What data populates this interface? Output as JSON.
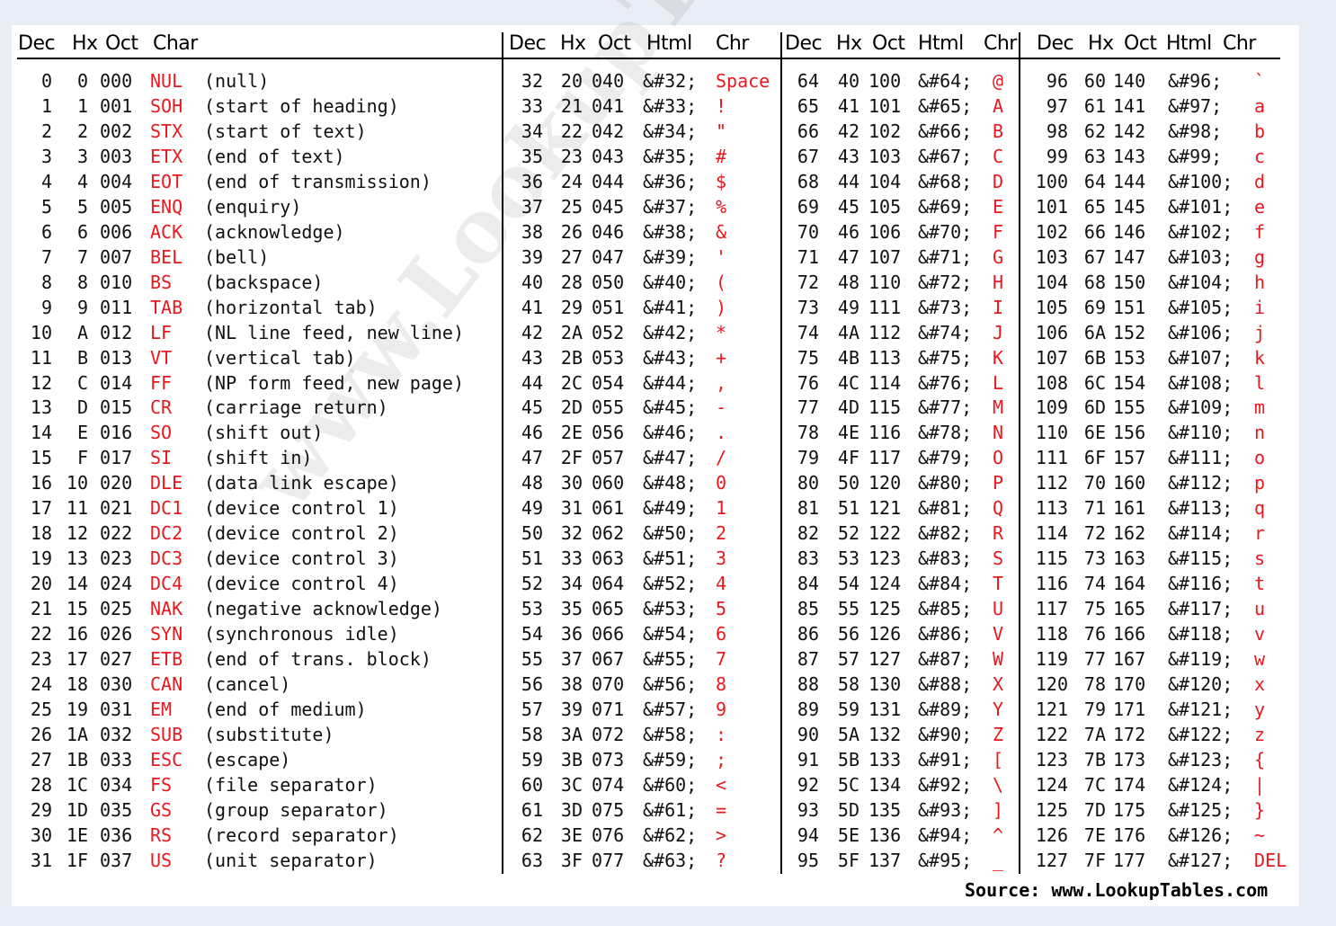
{
  "headers": [
    [
      "Dec",
      "Hx",
      "Oct",
      "Char"
    ],
    [
      "Dec",
      "Hx",
      "Oct",
      "Html",
      "Chr"
    ],
    [
      "Dec",
      "Hx",
      "Oct",
      "Html",
      "Chr"
    ],
    [
      "Dec",
      "Hx",
      "Oct",
      "Html",
      "Chr"
    ]
  ],
  "control_rows": [
    [
      "0",
      "0",
      "000",
      "NUL",
      "(null)"
    ],
    [
      "1",
      "1",
      "001",
      "SOH",
      "(start of heading)"
    ],
    [
      "2",
      "2",
      "002",
      "STX",
      "(start of text)"
    ],
    [
      "3",
      "3",
      "003",
      "ETX",
      "(end of text)"
    ],
    [
      "4",
      "4",
      "004",
      "EOT",
      "(end of transmission)"
    ],
    [
      "5",
      "5",
      "005",
      "ENQ",
      "(enquiry)"
    ],
    [
      "6",
      "6",
      "006",
      "ACK",
      "(acknowledge)"
    ],
    [
      "7",
      "7",
      "007",
      "BEL",
      "(bell)"
    ],
    [
      "8",
      "8",
      "010",
      "BS",
      "(backspace)"
    ],
    [
      "9",
      "9",
      "011",
      "TAB",
      "(horizontal tab)"
    ],
    [
      "10",
      "A",
      "012",
      "LF",
      "(NL line feed, new line)"
    ],
    [
      "11",
      "B",
      "013",
      "VT",
      "(vertical tab)"
    ],
    [
      "12",
      "C",
      "014",
      "FF",
      "(NP form feed, new page)"
    ],
    [
      "13",
      "D",
      "015",
      "CR",
      "(carriage return)"
    ],
    [
      "14",
      "E",
      "016",
      "SO",
      "(shift out)"
    ],
    [
      "15",
      "F",
      "017",
      "SI",
      "(shift in)"
    ],
    [
      "16",
      "10",
      "020",
      "DLE",
      "(data link escape)"
    ],
    [
      "17",
      "11",
      "021",
      "DC1",
      "(device control 1)"
    ],
    [
      "18",
      "12",
      "022",
      "DC2",
      "(device control 2)"
    ],
    [
      "19",
      "13",
      "023",
      "DC3",
      "(device control 3)"
    ],
    [
      "20",
      "14",
      "024",
      "DC4",
      "(device control 4)"
    ],
    [
      "21",
      "15",
      "025",
      "NAK",
      "(negative acknowledge)"
    ],
    [
      "22",
      "16",
      "026",
      "SYN",
      "(synchronous idle)"
    ],
    [
      "23",
      "17",
      "027",
      "ETB",
      "(end of trans. block)"
    ],
    [
      "24",
      "18",
      "030",
      "CAN",
      "(cancel)"
    ],
    [
      "25",
      "19",
      "031",
      "EM",
      "(end of medium)"
    ],
    [
      "26",
      "1A",
      "032",
      "SUB",
      "(substitute)"
    ],
    [
      "27",
      "1B",
      "033",
      "ESC",
      "(escape)"
    ],
    [
      "28",
      "1C",
      "034",
      "FS",
      "(file separator)"
    ],
    [
      "29",
      "1D",
      "035",
      "GS",
      "(group separator)"
    ],
    [
      "30",
      "1E",
      "036",
      "RS",
      "(record separator)"
    ],
    [
      "31",
      "1F",
      "037",
      "US",
      "(unit separator)"
    ]
  ],
  "html_columns": [
    [
      [
        "32",
        "20",
        "040",
        "&#32;",
        "Space"
      ],
      [
        "33",
        "21",
        "041",
        "&#33;",
        "!"
      ],
      [
        "34",
        "22",
        "042",
        "&#34;",
        "\""
      ],
      [
        "35",
        "23",
        "043",
        "&#35;",
        "#"
      ],
      [
        "36",
        "24",
        "044",
        "&#36;",
        "$"
      ],
      [
        "37",
        "25",
        "045",
        "&#37;",
        "%"
      ],
      [
        "38",
        "26",
        "046",
        "&#38;",
        "&"
      ],
      [
        "39",
        "27",
        "047",
        "&#39;",
        "'"
      ],
      [
        "40",
        "28",
        "050",
        "&#40;",
        "("
      ],
      [
        "41",
        "29",
        "051",
        "&#41;",
        ")"
      ],
      [
        "42",
        "2A",
        "052",
        "&#42;",
        "*"
      ],
      [
        "43",
        "2B",
        "053",
        "&#43;",
        "+"
      ],
      [
        "44",
        "2C",
        "054",
        "&#44;",
        ","
      ],
      [
        "45",
        "2D",
        "055",
        "&#45;",
        "-"
      ],
      [
        "46",
        "2E",
        "056",
        "&#46;",
        "."
      ],
      [
        "47",
        "2F",
        "057",
        "&#47;",
        "/"
      ],
      [
        "48",
        "30",
        "060",
        "&#48;",
        "0"
      ],
      [
        "49",
        "31",
        "061",
        "&#49;",
        "1"
      ],
      [
        "50",
        "32",
        "062",
        "&#50;",
        "2"
      ],
      [
        "51",
        "33",
        "063",
        "&#51;",
        "3"
      ],
      [
        "52",
        "34",
        "064",
        "&#52;",
        "4"
      ],
      [
        "53",
        "35",
        "065",
        "&#53;",
        "5"
      ],
      [
        "54",
        "36",
        "066",
        "&#54;",
        "6"
      ],
      [
        "55",
        "37",
        "067",
        "&#55;",
        "7"
      ],
      [
        "56",
        "38",
        "070",
        "&#56;",
        "8"
      ],
      [
        "57",
        "39",
        "071",
        "&#57;",
        "9"
      ],
      [
        "58",
        "3A",
        "072",
        "&#58;",
        ":"
      ],
      [
        "59",
        "3B",
        "073",
        "&#59;",
        ";"
      ],
      [
        "60",
        "3C",
        "074",
        "&#60;",
        "<"
      ],
      [
        "61",
        "3D",
        "075",
        "&#61;",
        "="
      ],
      [
        "62",
        "3E",
        "076",
        "&#62;",
        ">"
      ],
      [
        "63",
        "3F",
        "077",
        "&#63;",
        "?"
      ]
    ],
    [
      [
        "64",
        "40",
        "100",
        "&#64;",
        "@"
      ],
      [
        "65",
        "41",
        "101",
        "&#65;",
        "A"
      ],
      [
        "66",
        "42",
        "102",
        "&#66;",
        "B"
      ],
      [
        "67",
        "43",
        "103",
        "&#67;",
        "C"
      ],
      [
        "68",
        "44",
        "104",
        "&#68;",
        "D"
      ],
      [
        "69",
        "45",
        "105",
        "&#69;",
        "E"
      ],
      [
        "70",
        "46",
        "106",
        "&#70;",
        "F"
      ],
      [
        "71",
        "47",
        "107",
        "&#71;",
        "G"
      ],
      [
        "72",
        "48",
        "110",
        "&#72;",
        "H"
      ],
      [
        "73",
        "49",
        "111",
        "&#73;",
        "I"
      ],
      [
        "74",
        "4A",
        "112",
        "&#74;",
        "J"
      ],
      [
        "75",
        "4B",
        "113",
        "&#75;",
        "K"
      ],
      [
        "76",
        "4C",
        "114",
        "&#76;",
        "L"
      ],
      [
        "77",
        "4D",
        "115",
        "&#77;",
        "M"
      ],
      [
        "78",
        "4E",
        "116",
        "&#78;",
        "N"
      ],
      [
        "79",
        "4F",
        "117",
        "&#79;",
        "O"
      ],
      [
        "80",
        "50",
        "120",
        "&#80;",
        "P"
      ],
      [
        "81",
        "51",
        "121",
        "&#81;",
        "Q"
      ],
      [
        "82",
        "52",
        "122",
        "&#82;",
        "R"
      ],
      [
        "83",
        "53",
        "123",
        "&#83;",
        "S"
      ],
      [
        "84",
        "54",
        "124",
        "&#84;",
        "T"
      ],
      [
        "85",
        "55",
        "125",
        "&#85;",
        "U"
      ],
      [
        "86",
        "56",
        "126",
        "&#86;",
        "V"
      ],
      [
        "87",
        "57",
        "127",
        "&#87;",
        "W"
      ],
      [
        "88",
        "58",
        "130",
        "&#88;",
        "X"
      ],
      [
        "89",
        "59",
        "131",
        "&#89;",
        "Y"
      ],
      [
        "90",
        "5A",
        "132",
        "&#90;",
        "Z"
      ],
      [
        "91",
        "5B",
        "133",
        "&#91;",
        "["
      ],
      [
        "92",
        "5C",
        "134",
        "&#92;",
        "\\"
      ],
      [
        "93",
        "5D",
        "135",
        "&#93;",
        "]"
      ],
      [
        "94",
        "5E",
        "136",
        "&#94;",
        "^"
      ],
      [
        "95",
        "5F",
        "137",
        "&#95;",
        "_"
      ]
    ],
    [
      [
        "96",
        "60",
        "140",
        "&#96;",
        "`"
      ],
      [
        "97",
        "61",
        "141",
        "&#97;",
        "a"
      ],
      [
        "98",
        "62",
        "142",
        "&#98;",
        "b"
      ],
      [
        "99",
        "63",
        "143",
        "&#99;",
        "c"
      ],
      [
        "100",
        "64",
        "144",
        "&#100;",
        "d"
      ],
      [
        "101",
        "65",
        "145",
        "&#101;",
        "e"
      ],
      [
        "102",
        "66",
        "146",
        "&#102;",
        "f"
      ],
      [
        "103",
        "67",
        "147",
        "&#103;",
        "g"
      ],
      [
        "104",
        "68",
        "150",
        "&#104;",
        "h"
      ],
      [
        "105",
        "69",
        "151",
        "&#105;",
        "i"
      ],
      [
        "106",
        "6A",
        "152",
        "&#106;",
        "j"
      ],
      [
        "107",
        "6B",
        "153",
        "&#107;",
        "k"
      ],
      [
        "108",
        "6C",
        "154",
        "&#108;",
        "l"
      ],
      [
        "109",
        "6D",
        "155",
        "&#109;",
        "m"
      ],
      [
        "110",
        "6E",
        "156",
        "&#110;",
        "n"
      ],
      [
        "111",
        "6F",
        "157",
        "&#111;",
        "o"
      ],
      [
        "112",
        "70",
        "160",
        "&#112;",
        "p"
      ],
      [
        "113",
        "71",
        "161",
        "&#113;",
        "q"
      ],
      [
        "114",
        "72",
        "162",
        "&#114;",
        "r"
      ],
      [
        "115",
        "73",
        "163",
        "&#115;",
        "s"
      ],
      [
        "116",
        "74",
        "164",
        "&#116;",
        "t"
      ],
      [
        "117",
        "75",
        "165",
        "&#117;",
        "u"
      ],
      [
        "118",
        "76",
        "166",
        "&#118;",
        "v"
      ],
      [
        "119",
        "77",
        "167",
        "&#119;",
        "w"
      ],
      [
        "120",
        "78",
        "170",
        "&#120;",
        "x"
      ],
      [
        "121",
        "79",
        "171",
        "&#121;",
        "y"
      ],
      [
        "122",
        "7A",
        "172",
        "&#122;",
        "z"
      ],
      [
        "123",
        "7B",
        "173",
        "&#123;",
        "{"
      ],
      [
        "124",
        "7C",
        "174",
        "&#124;",
        "|"
      ],
      [
        "125",
        "7D",
        "175",
        "&#125;",
        "}"
      ],
      [
        "126",
        "7E",
        "176",
        "&#126;",
        "~"
      ],
      [
        "127",
        "7F",
        "177",
        "&#127;",
        "DEL"
      ]
    ]
  ],
  "watermark": "www.LookupTables.com",
  "source": "Source:  www.LookupTables.com",
  "colors": {
    "background": "#e9edf5",
    "table": "#ffffff",
    "text": "#111111",
    "accent_red": "#e8181e"
  }
}
